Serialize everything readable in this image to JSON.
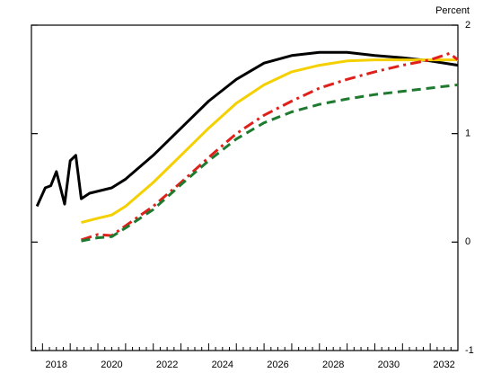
{
  "chart_data": {
    "type": "line",
    "y_axis_label": "Percent",
    "xlim": [
      2017.6,
      2033.0
    ],
    "xticks": [
      2018,
      2020,
      2022,
      2024,
      2026,
      2028,
      2030,
      2032
    ],
    "ylim": [
      -1,
      2
    ],
    "yticks": [
      -1,
      0,
      1,
      2
    ],
    "series": [
      {
        "color": "#000000",
        "dash": "none",
        "x": [
          2017.8,
          2018.1,
          2018.3,
          2018.5,
          2018.8,
          2019.0,
          2019.2,
          2019.4,
          2019.7,
          2020.5,
          2021,
          2022,
          2023,
          2024,
          2025,
          2026,
          2027,
          2028,
          2029,
          2030,
          2031,
          2032,
          2033
        ],
        "values": [
          0.33,
          0.5,
          0.52,
          0.65,
          0.35,
          0.75,
          0.8,
          0.4,
          0.45,
          0.5,
          0.58,
          0.8,
          1.05,
          1.3,
          1.5,
          1.65,
          1.72,
          1.75,
          1.75,
          1.72,
          1.7,
          1.67,
          1.63
        ]
      },
      {
        "color": "#f5d000",
        "dash": "none",
        "x": [
          2019.4,
          2020,
          2020.5,
          2021,
          2022,
          2023,
          2024,
          2025,
          2026,
          2027,
          2028,
          2029,
          2030,
          2031,
          2032,
          2033
        ],
        "values": [
          0.18,
          0.22,
          0.25,
          0.33,
          0.55,
          0.8,
          1.05,
          1.28,
          1.45,
          1.57,
          1.63,
          1.67,
          1.68,
          1.68,
          1.68,
          1.68
        ]
      },
      {
        "color": "#e0201b",
        "dash": "12 5 3 5",
        "x": [
          2019.4,
          2020,
          2020.5,
          2021,
          2022,
          2023,
          2024,
          2025,
          2026,
          2027,
          2028,
          2029,
          2030,
          2031,
          2032,
          2032.7,
          2033
        ],
        "values": [
          0.02,
          0.07,
          0.06,
          0.15,
          0.33,
          0.55,
          0.78,
          1.0,
          1.17,
          1.3,
          1.42,
          1.5,
          1.57,
          1.63,
          1.68,
          1.74,
          1.68
        ]
      },
      {
        "color": "#1e7a2e",
        "dash": "10 6",
        "x": [
          2019.4,
          2020,
          2020.5,
          2021,
          2022,
          2023,
          2024,
          2025,
          2026,
          2027,
          2028,
          2029,
          2030,
          2031,
          2032,
          2033
        ],
        "values": [
          0.01,
          0.04,
          0.05,
          0.13,
          0.3,
          0.53,
          0.75,
          0.95,
          1.1,
          1.2,
          1.27,
          1.32,
          1.36,
          1.39,
          1.42,
          1.45
        ]
      }
    ]
  }
}
